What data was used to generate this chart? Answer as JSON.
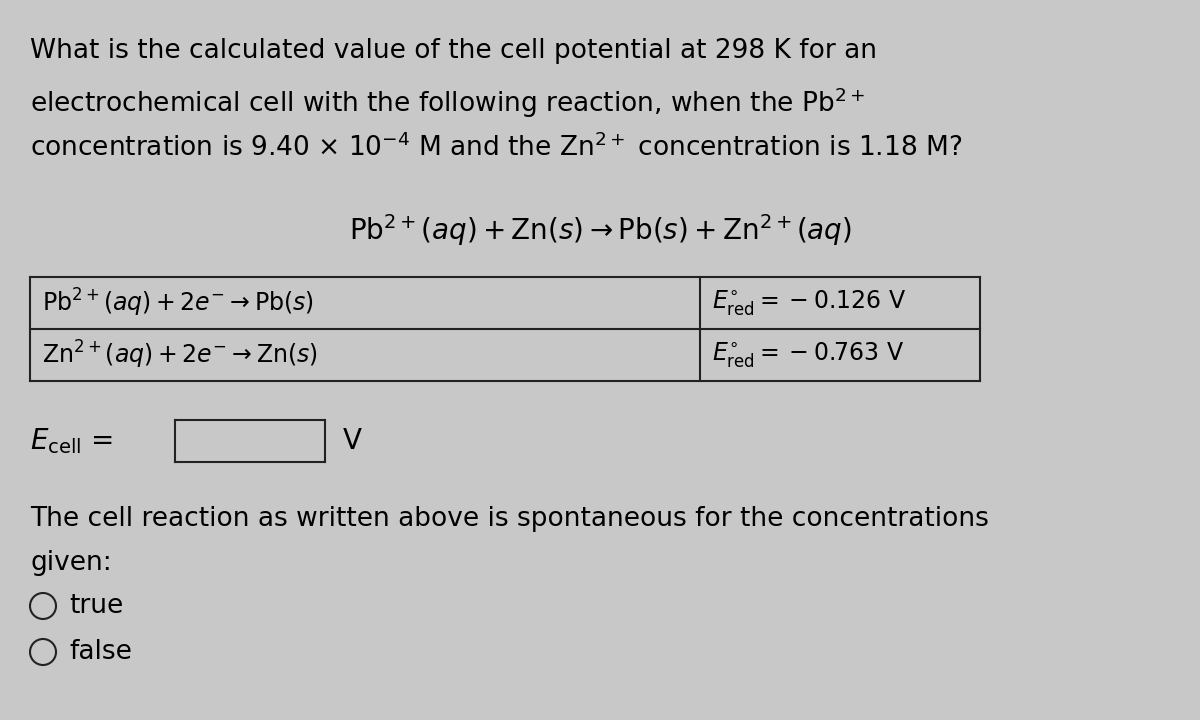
{
  "bg_color": "#c8c8c8",
  "panel_color": "#c8c8c8",
  "text_color": "#000000",
  "line_color": "#222222",
  "title_line1": "What is the calculated value of the cell potential at 298 K for an",
  "title_line2": "electrochemical cell with the following reaction, when the $\\mathrm{Pb}^{2+}$",
  "title_line3": "concentration is 9.40 $\\times$ 10$^{-4}$ M and the $\\mathrm{Zn}^{2+}$ concentration is 1.18 M?",
  "reaction": "$\\mathrm{Pb}^{2+}(aq) + \\mathrm{Zn}(s) \\rightarrow \\mathrm{Pb}(s) + \\mathrm{Zn}^{2+}(aq)$",
  "row1_left": "$\\mathrm{Pb}^{2+}(aq) + 2e^{-} \\rightarrow \\mathrm{Pb}(s)$",
  "row1_right": "$E^{\\circ}_{\\mathrm{red}} = -0.126\\ \\mathrm{V}$",
  "row2_left": "$\\mathrm{Zn}^{2+}(aq) + 2e^{-} \\rightarrow \\mathrm{Zn}(s)$",
  "row2_right": "$E^{\\circ}_{\\mathrm{red}} = -0.763\\ \\mathrm{V}$",
  "ecell_label": "$E_{\\mathrm{cell}}$",
  "ecell_unit": "V",
  "spontaneous_line1": "The cell reaction as written above is spontaneous for the concentrations",
  "spontaneous_line2": "given:",
  "option_true": "true",
  "option_false": "false",
  "fs_title": 19,
  "fs_reaction": 20,
  "fs_table": 17,
  "fs_ecell": 20,
  "fs_spont": 19,
  "fs_options": 19
}
